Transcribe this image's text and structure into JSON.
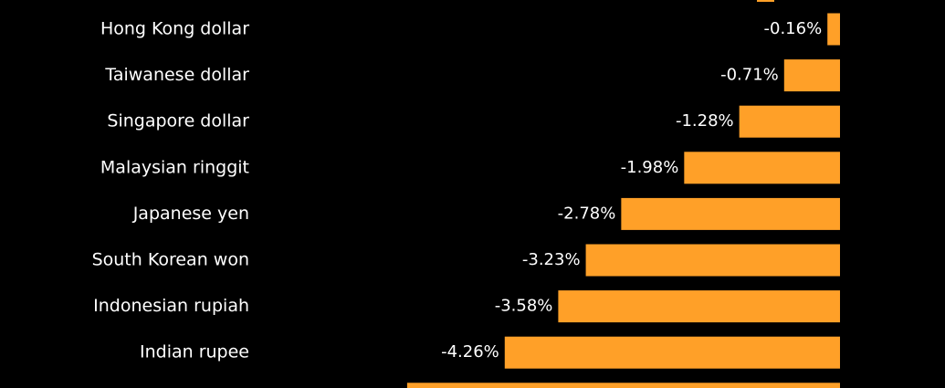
{
  "chart_data": {
    "type": "bar",
    "orientation": "horizontal",
    "categories": [
      "Hong Kong dollar",
      "Taiwanese dollar",
      "Singapore dollar",
      "Malaysian ringgit",
      "Japanese yen",
      "South Korean won",
      "Indonesian rupiah",
      "Indian rupee",
      ""
    ],
    "values": [
      -0.16,
      -0.71,
      -1.28,
      -1.98,
      -2.78,
      -3.23,
      -3.58,
      -4.26,
      -5.5
    ],
    "value_labels": [
      "-0.16%",
      "-0.71%",
      "-1.28%",
      "-1.98%",
      "-2.78%",
      "-3.23%",
      "-3.58%",
      "-4.26%",
      ""
    ],
    "bar_color": "#ffa028",
    "background": "#000000",
    "grid": false
  }
}
